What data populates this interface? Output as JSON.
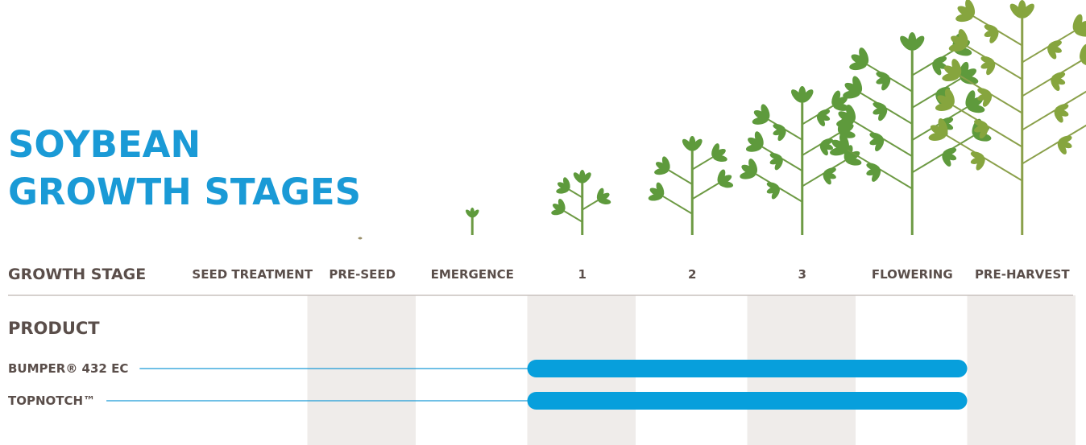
{
  "title": [
    "SOYBEAN",
    "GROWTH STAGES"
  ],
  "header_label": "GROWTH STAGE",
  "stages": [
    "SEED TREATMENT",
    "PRE-SEED",
    "EMERGENCE",
    "1",
    "2",
    "3",
    "FLOWERING",
    "PRE-HARVEST"
  ],
  "product_label": "PRODUCT",
  "products": [
    {
      "name": "BUMPER® 432 EC",
      "window": [
        3,
        6
      ]
    },
    {
      "name": "TOPNOTCH™",
      "window": [
        3,
        6
      ]
    }
  ]
}
